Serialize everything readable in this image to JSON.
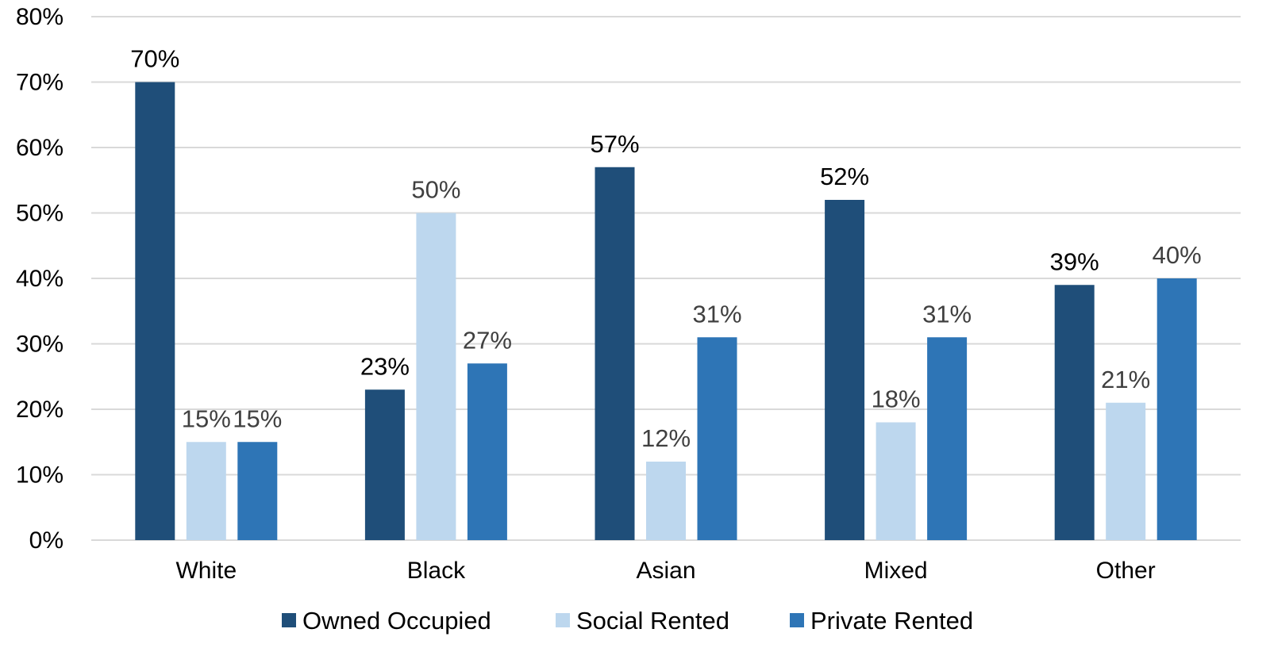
{
  "chart_data": {
    "type": "bar",
    "categories": [
      "White",
      "Black",
      "Asian",
      "Mixed",
      "Other"
    ],
    "series": [
      {
        "name": "Owned Occupied",
        "color": "#1f4e79",
        "values": [
          70,
          23,
          57,
          52,
          39
        ],
        "labels": [
          "70%",
          "23%",
          "57%",
          "52%",
          "39%"
        ],
        "label_color": "#000000"
      },
      {
        "name": "Social Rented",
        "color": "#bdd7ee",
        "values": [
          15,
          50,
          12,
          18,
          21
        ],
        "labels": [
          "15%",
          "50%",
          "12%",
          "18%",
          "21%"
        ],
        "label_color": "#404040"
      },
      {
        "name": "Private Rented",
        "color": "#2e75b6",
        "values": [
          15,
          27,
          31,
          31,
          40
        ],
        "labels": [
          "15%",
          "27%",
          "31%",
          "31%",
          "40%"
        ],
        "label_color": "#404040"
      }
    ],
    "ylim": [
      0,
      80
    ],
    "yticks": [
      0,
      10,
      20,
      30,
      40,
      50,
      60,
      70,
      80
    ],
    "ytick_labels": [
      "0%",
      "10%",
      "20%",
      "30%",
      "40%",
      "50%",
      "60%",
      "70%",
      "80%"
    ],
    "grid": true,
    "grid_color": "#d9d9d9",
    "legend_position": "bottom"
  }
}
